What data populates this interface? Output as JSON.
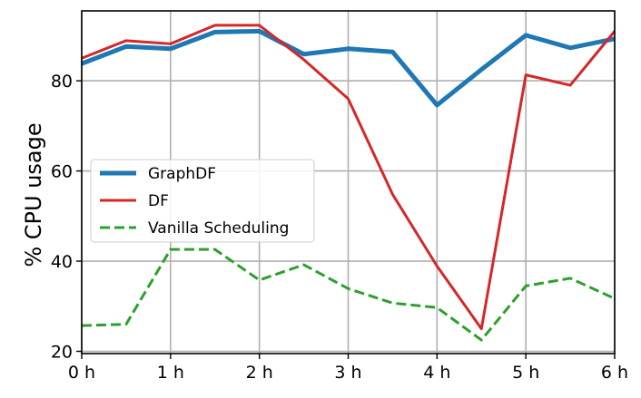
{
  "chart_data": {
    "type": "line",
    "xlabel": "",
    "ylabel": "% CPU usage",
    "x": [
      0,
      0.5,
      1,
      1.5,
      2,
      2.5,
      3,
      3.5,
      4,
      4.5,
      5,
      5.5,
      6
    ],
    "x_tick_values": [
      0,
      1,
      2,
      3,
      4,
      5,
      6
    ],
    "x_tick_labels": [
      "0 h",
      "1 h",
      "2 h",
      "3 h",
      "4 h",
      "5 h",
      "6 h"
    ],
    "y_tick_values": [
      20,
      40,
      60,
      80
    ],
    "y_tick_labels": [
      "20",
      "40",
      "60",
      "80"
    ],
    "xlim": [
      0,
      6
    ],
    "ylim": [
      19.5,
      95.5
    ],
    "grid": true,
    "legend_position": "center-left",
    "series": [
      {
        "name": "GraphDF",
        "color": "#1f77b4",
        "style": "solid-thick",
        "values": [
          83.8,
          87.6,
          87.1,
          90.8,
          91.0,
          85.9,
          87.1,
          86.4,
          74.6,
          82.5,
          90.1,
          87.3,
          89.3
        ]
      },
      {
        "name": "DF",
        "color": "#d62728",
        "style": "solid",
        "values": [
          85.0,
          88.9,
          88.2,
          92.3,
          92.3,
          84.7,
          76.0,
          54.8,
          38.9,
          25.0,
          81.3,
          79.0,
          91.0
        ]
      },
      {
        "name": "Vanilla Scheduling",
        "color": "#2ca02c",
        "style": "dashed",
        "values": [
          25.7,
          26.0,
          42.6,
          42.6,
          35.8,
          39.2,
          33.9,
          30.7,
          29.7,
          22.5,
          34.5,
          36.2,
          31.7
        ]
      }
    ]
  }
}
